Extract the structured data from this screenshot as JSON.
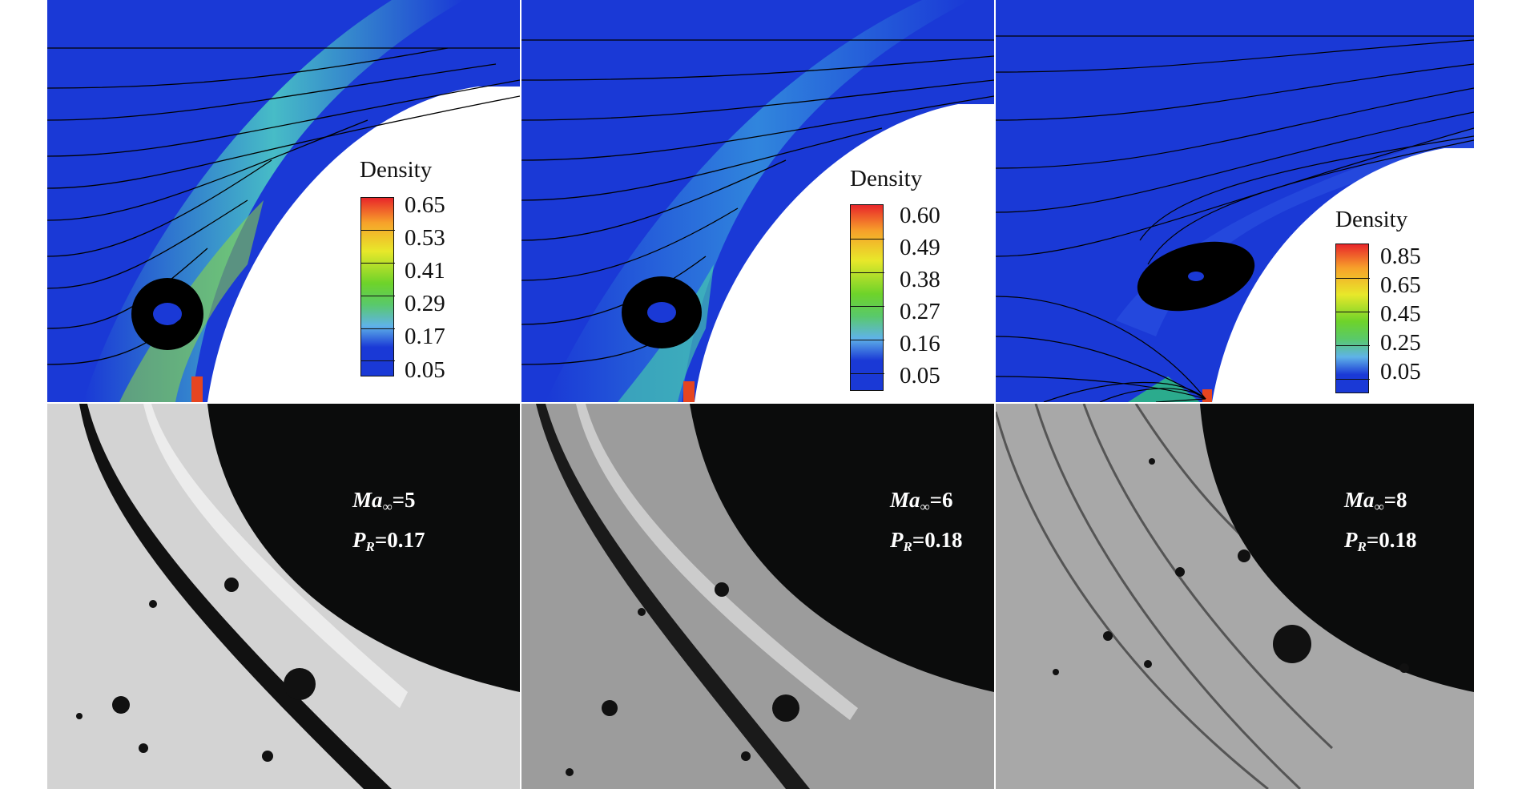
{
  "figure": {
    "columns": [
      {
        "id": "col1",
        "legend": {
          "title": "Density",
          "levels": [
            "0.65",
            "0.53",
            "0.41",
            "0.29",
            "0.17",
            "0.05"
          ]
        },
        "annotation": {
          "mach_symbol": "Ma",
          "mach_sub": "∞",
          "mach_value": "=5",
          "pr_symbol": "P",
          "pr_sub": "R",
          "pr_value": "=0.17"
        }
      },
      {
        "id": "col2",
        "legend": {
          "title": "Density",
          "levels": [
            "0.60",
            "0.49",
            "0.38",
            "0.27",
            "0.16",
            "0.05"
          ]
        },
        "annotation": {
          "mach_symbol": "Ma",
          "mach_sub": "∞",
          "mach_value": "=6",
          "pr_symbol": "P",
          "pr_sub": "R",
          "pr_value": "=0.18"
        }
      },
      {
        "id": "col3",
        "legend": {
          "title": "Density",
          "levels": [
            "0.85",
            "0.65",
            "0.45",
            "0.25",
            "0.05"
          ]
        },
        "annotation": {
          "mach_symbol": "Ma",
          "mach_sub": "∞",
          "mach_value": "=8",
          "pr_symbol": "P",
          "pr_sub": "R",
          "pr_value": "=0.18"
        }
      }
    ],
    "colors": {
      "field_blue": "#1a39d6",
      "body_white": "#ffffff",
      "schlieren_body": "#0b0c0c",
      "streamline": "#000000"
    }
  }
}
